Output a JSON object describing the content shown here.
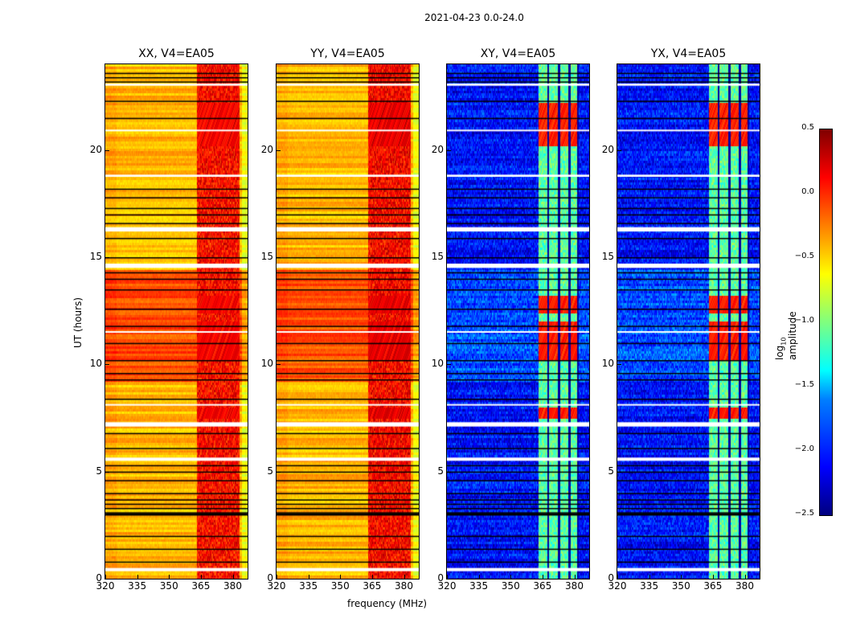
{
  "chart_data": {
    "type": "heatmap",
    "suptitle": "2021-04-23 0.0-24.0",
    "xlabel": "frequency (MHz)",
    "ylabel": "UT (hours)",
    "xlim": [
      320,
      387
    ],
    "ylim": [
      0,
      24
    ],
    "xticks": [
      "320",
      "335",
      "350",
      "365",
      "380"
    ],
    "xtick_values": [
      320,
      335,
      350,
      365,
      380
    ],
    "yticks": [
      "0",
      "5",
      "10",
      "15",
      "20"
    ],
    "ytick_values": [
      0,
      5,
      10,
      15,
      20
    ],
    "colorbar": {
      "label_main": "log",
      "label_sub": "10",
      "label_rest": " amplitude",
      "range": [
        -2.5,
        0.5
      ],
      "ticks": [
        "0.5",
        "0.0",
        "−0.5",
        "−1.0",
        "−1.5",
        "−2.0",
        "−2.5"
      ],
      "tick_values": [
        0.5,
        0,
        -0.5,
        -1,
        -1.5,
        -2,
        -2.5
      ],
      "colormap": "jet"
    },
    "panels": [
      {
        "title": "XX, V4=EA05",
        "kind": "parallel",
        "base": -0.42,
        "base_high_block": -0.1,
        "rfi_level": 0.1,
        "rfi_peak": 0.3
      },
      {
        "title": "YY, V4=EA05",
        "kind": "parallel",
        "base": -0.42,
        "base_high_block": -0.12,
        "rfi_level": 0.12,
        "rfi_peak": 0.35
      },
      {
        "title": "XY, V4=EA05",
        "kind": "cross",
        "base": -2.1,
        "base_high_block": -1.9,
        "rfi_level": -1.1,
        "rfi_peak": 0.2
      },
      {
        "title": "YX, V4=EA05",
        "kind": "cross",
        "base": -2.1,
        "base_high_block": -1.9,
        "rfi_level": -1.1,
        "rfi_peak": 0.2
      }
    ],
    "high_block_hours": [
      9.2,
      14.4
    ],
    "rfi_bands_mhz": [
      [
        363,
        367
      ],
      [
        368,
        372
      ],
      [
        373,
        377
      ],
      [
        378,
        381
      ]
    ],
    "rfi_peak_hours": [
      [
        10.2,
        12.0
      ],
      [
        20.2,
        22.2
      ],
      [
        12.4,
        13.2
      ],
      [
        7.5,
        8.0
      ]
    ],
    "flagged_hours": [
      [
        0.35,
        0.5
      ],
      [
        5.5,
        5.65
      ],
      [
        7.1,
        7.3
      ],
      [
        14.5,
        14.7
      ],
      [
        16.2,
        16.4
      ],
      [
        18.75,
        18.85
      ],
      [
        23.0,
        23.1
      ],
      [
        20.9,
        20.95
      ],
      [
        11.5,
        11.55
      ],
      [
        8.1,
        8.15
      ]
    ],
    "black_line_hours": [
      0.8,
      1.4,
      2.0,
      3.0,
      3.05,
      3.1,
      3.3,
      3.5,
      3.7,
      4.0,
      4.6,
      5.0,
      5.3,
      6.1,
      6.8,
      8.4,
      9.3,
      9.6,
      10.2,
      11.0,
      11.8,
      12.6,
      13.5,
      14.0,
      14.3,
      15.0,
      15.9,
      16.6,
      17.0,
      17.3,
      17.8,
      18.2,
      21.5,
      22.3,
      23.2,
      23.4,
      23.6
    ]
  }
}
